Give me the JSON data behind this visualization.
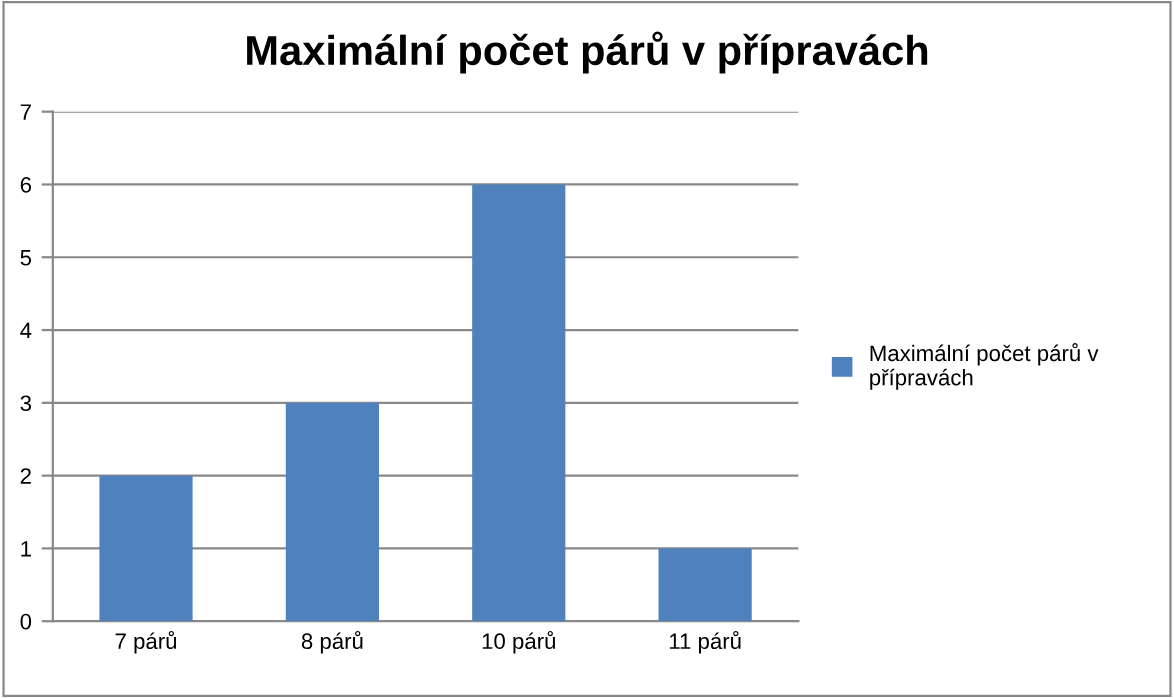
{
  "chart_data": {
    "type": "bar",
    "title": "Maximální počet párů v přípravách",
    "categories": [
      "7 párů",
      "8 párů",
      "10 párů",
      "11 párů"
    ],
    "series": [
      {
        "name": "Maximální počet párů v přípravách",
        "color": "#4f81bd",
        "values": [
          2,
          3,
          6,
          1
        ]
      }
    ],
    "ylim": [
      0,
      7
    ],
    "yticks": [
      0,
      1,
      2,
      3,
      4,
      5,
      6,
      7
    ],
    "grid": "y",
    "legend": "right"
  }
}
